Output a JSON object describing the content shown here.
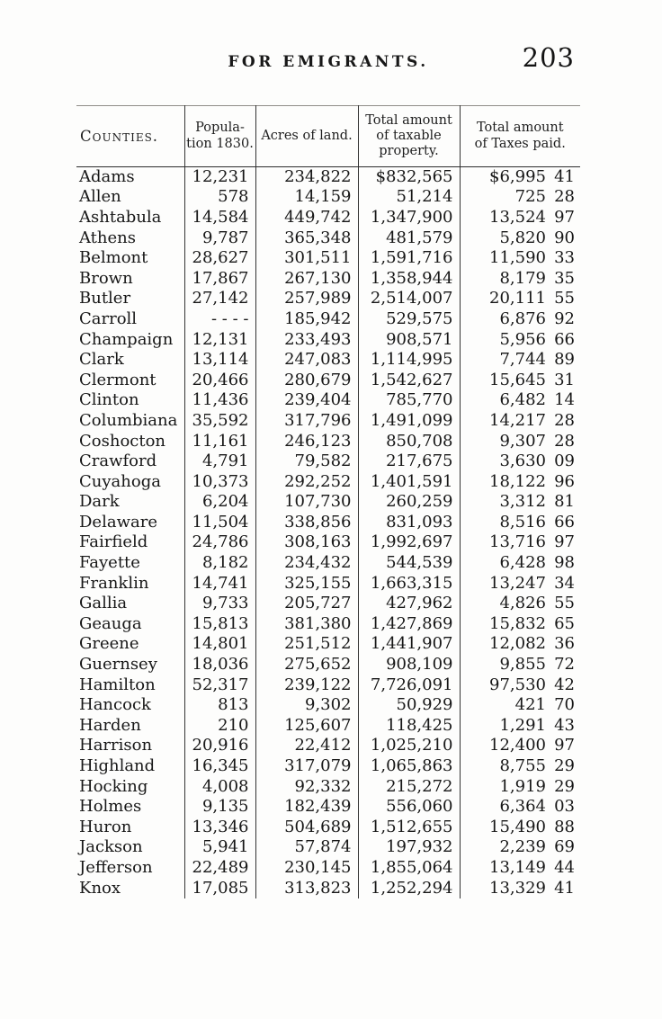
{
  "page": {
    "running_head": "FOR EMIGRANTS.",
    "page_number": "203"
  },
  "table": {
    "columns": [
      {
        "label": "Counties."
      },
      {
        "label": "Popula-\ntion 1830."
      },
      {
        "label": "Acres of land."
      },
      {
        "label": "Total amount\nof taxable\nproperty."
      },
      {
        "label": "Total amount\nof Taxes paid."
      }
    ],
    "rows": [
      [
        "Adams",
        "12,231",
        "234,822",
        "$832,565",
        "$6,995",
        "41"
      ],
      [
        "Allen",
        "578",
        "14,159",
        "51,214",
        "725",
        "28"
      ],
      [
        "Ashtabula",
        "14,584",
        "449,742",
        "1,347,900",
        "13,524",
        "97"
      ],
      [
        "Athens",
        "9,787",
        "365,348",
        "481,579",
        "5,820",
        "90"
      ],
      [
        "Belmont",
        "28,627",
        "301,511",
        "1,591,716",
        "11,590",
        "33"
      ],
      [
        "Brown",
        "17,867",
        "267,130",
        "1,358,944",
        "8,179",
        "35"
      ],
      [
        "Butler",
        "27,142",
        "257,989",
        "2,514,007",
        "20,111",
        "55"
      ],
      [
        "Carroll",
        "- - - -",
        "185,942",
        "529,575",
        "6,876",
        "92"
      ],
      [
        "Champaign",
        "12,131",
        "233,493",
        "908,571",
        "5,956",
        "66"
      ],
      [
        "Clark",
        "13,114",
        "247,083",
        "1,114,995",
        "7,744",
        "89"
      ],
      [
        "Clermont",
        "20,466",
        "280,679",
        "1,542,627",
        "15,645",
        "31"
      ],
      [
        "Clinton",
        "11,436",
        "239,404",
        "785,770",
        "6,482",
        "14"
      ],
      [
        "Columbiana",
        "35,592",
        "317,796",
        "1,491,099",
        "14,217",
        "28"
      ],
      [
        "Coshocton",
        "11,161",
        "246,123",
        "850,708",
        "9,307",
        "28"
      ],
      [
        "Crawford",
        "4,791",
        "79,582",
        "217,675",
        "3,630",
        "09"
      ],
      [
        "Cuyahoga",
        "10,373",
        "292,252",
        "1,401,591",
        "18,122",
        "96"
      ],
      [
        "Dark",
        "6,204",
        "107,730",
        "260,259",
        "3,312",
        "81"
      ],
      [
        "Delaware",
        "11,504",
        "338,856",
        "831,093",
        "8,516",
        "66"
      ],
      [
        "Fairfield",
        "24,786",
        "308,163",
        "1,992,697",
        "13,716",
        "97"
      ],
      [
        "Fayette",
        "8,182",
        "234,432",
        "544,539",
        "6,428",
        "98"
      ],
      [
        "Franklin",
        "14,741",
        "325,155",
        "1,663,315",
        "13,247",
        "34"
      ],
      [
        "Gallia",
        "9,733",
        "205,727",
        "427,962",
        "4,826",
        "55"
      ],
      [
        "Geauga",
        "15,813",
        "381,380",
        "1,427,869",
        "15,832",
        "65"
      ],
      [
        "Greene",
        "14,801",
        "251,512",
        "1,441,907",
        "12,082",
        "36"
      ],
      [
        "Guernsey",
        "18,036",
        "275,652",
        "908,109",
        "9,855",
        "72"
      ],
      [
        "Hamilton",
        "52,317",
        "239,122",
        "7,726,091",
        "97,530",
        "42"
      ],
      [
        "Hancock",
        "813",
        "9,302",
        "50,929",
        "421",
        "70"
      ],
      [
        "Harden",
        "210",
        "125,607",
        "118,425",
        "1,291",
        "43"
      ],
      [
        "Harrison",
        "20,916",
        "22,412",
        "1,025,210",
        "12,400",
        "97"
      ],
      [
        "Highland",
        "16,345",
        "317,079",
        "1,065,863",
        "8,755",
        "29"
      ],
      [
        "Hocking",
        "4,008",
        "92,332",
        "215,272",
        "1,919",
        "29"
      ],
      [
        "Holmes",
        "9,135",
        "182,439",
        "556,060",
        "6,364",
        "03"
      ],
      [
        "Huron",
        "13,346",
        "504,689",
        "1,512,655",
        "15,490",
        "88"
      ],
      [
        "Jackson",
        "5,941",
        "57,874",
        "197,932",
        "2,239",
        "69"
      ],
      [
        "Jefferson",
        "22,489",
        "230,145",
        "1,855,064",
        "13,149",
        "44"
      ],
      [
        "Knox",
        "17,085",
        "313,823",
        "1,252,294",
        "13,329",
        "41"
      ]
    ]
  }
}
